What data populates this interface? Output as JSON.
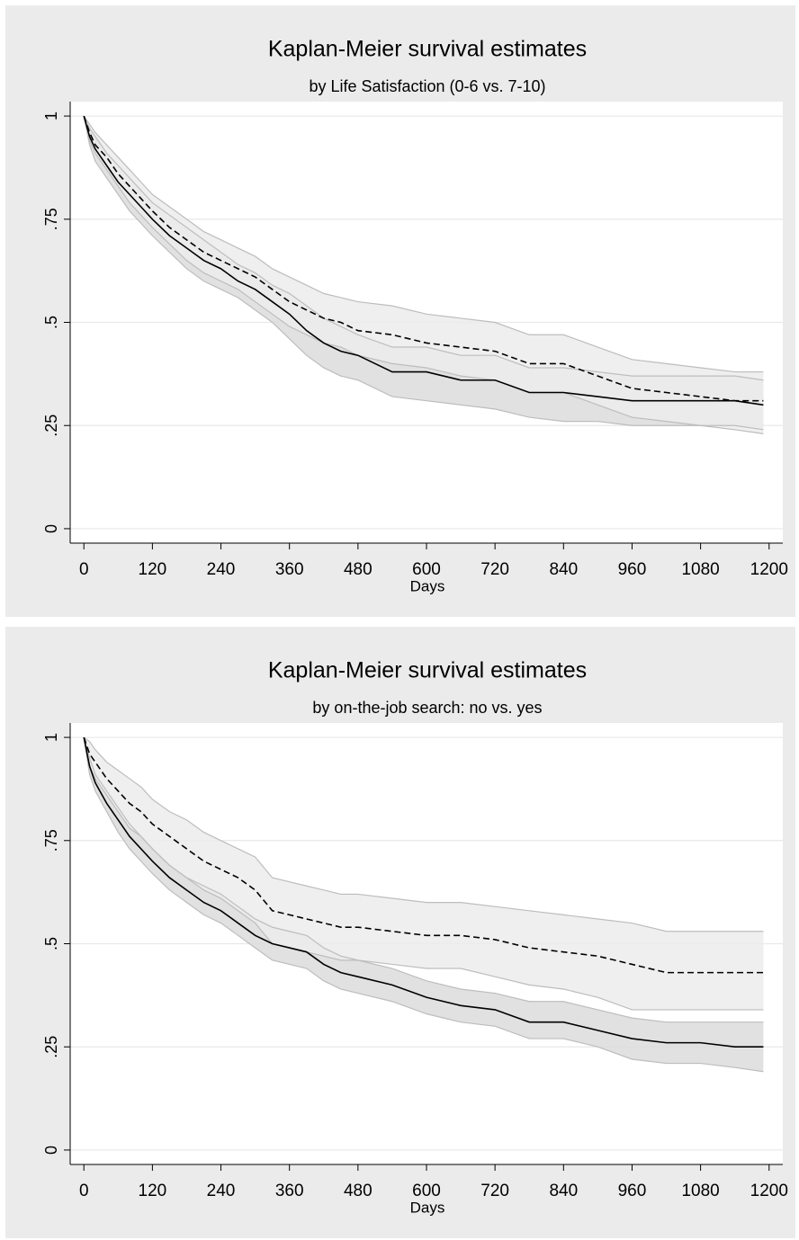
{
  "chart_data": [
    {
      "type": "line",
      "title": "Kaplan-Meier survival estimates",
      "subtitle": "by Life Satisfaction (0-6 vs. 7-10)",
      "xlabel": "Days",
      "x": [
        0,
        10,
        20,
        40,
        60,
        80,
        100,
        120,
        150,
        180,
        210,
        240,
        270,
        300,
        330,
        360,
        390,
        420,
        450,
        480,
        540,
        600,
        660,
        720,
        780,
        840,
        900,
        960,
        1020,
        1080,
        1140,
        1190
      ],
      "series": [
        {
          "color": "#000000",
          "dash": false,
          "band_color": "#dcdcdc",
          "values": [
            1,
            0.95,
            0.92,
            0.88,
            0.84,
            0.81,
            0.78,
            0.75,
            0.71,
            0.68,
            0.65,
            0.63,
            0.6,
            0.58,
            0.55,
            0.52,
            0.48,
            0.45,
            0.43,
            0.42,
            0.38,
            0.38,
            0.36,
            0.36,
            0.33,
            0.33,
            0.32,
            0.31,
            0.31,
            0.31,
            0.31,
            0.3
          ],
          "lower": [
            1,
            0.93,
            0.89,
            0.85,
            0.81,
            0.77,
            0.74,
            0.71,
            0.67,
            0.63,
            0.6,
            0.58,
            0.56,
            0.53,
            0.5,
            0.46,
            0.42,
            0.39,
            0.37,
            0.36,
            0.32,
            0.31,
            0.3,
            0.29,
            0.27,
            0.26,
            0.26,
            0.25,
            0.25,
            0.25,
            0.25,
            0.24
          ],
          "upper": [
            1,
            0.97,
            0.95,
            0.91,
            0.88,
            0.85,
            0.82,
            0.79,
            0.76,
            0.73,
            0.7,
            0.67,
            0.64,
            0.62,
            0.59,
            0.57,
            0.54,
            0.51,
            0.49,
            0.47,
            0.44,
            0.44,
            0.42,
            0.42,
            0.39,
            0.39,
            0.38,
            0.37,
            0.37,
            0.37,
            0.37,
            0.36
          ]
        },
        {
          "color": "#000000",
          "dash": true,
          "band_color": "#ececec",
          "values": [
            1,
            0.96,
            0.93,
            0.9,
            0.86,
            0.83,
            0.8,
            0.77,
            0.73,
            0.7,
            0.67,
            0.65,
            0.63,
            0.61,
            0.58,
            0.55,
            0.53,
            0.51,
            0.5,
            0.48,
            0.47,
            0.45,
            0.44,
            0.43,
            0.4,
            0.4,
            0.37,
            0.34,
            0.33,
            0.32,
            0.31,
            0.31
          ],
          "lower": [
            1,
            0.94,
            0.91,
            0.87,
            0.83,
            0.79,
            0.76,
            0.73,
            0.69,
            0.65,
            0.62,
            0.6,
            0.58,
            0.55,
            0.52,
            0.49,
            0.47,
            0.45,
            0.44,
            0.42,
            0.4,
            0.39,
            0.37,
            0.36,
            0.33,
            0.33,
            0.3,
            0.27,
            0.26,
            0.25,
            0.24,
            0.23
          ],
          "upper": [
            1,
            0.98,
            0.96,
            0.93,
            0.9,
            0.87,
            0.84,
            0.81,
            0.78,
            0.75,
            0.72,
            0.7,
            0.68,
            0.66,
            0.63,
            0.61,
            0.59,
            0.57,
            0.56,
            0.55,
            0.54,
            0.52,
            0.51,
            0.5,
            0.47,
            0.47,
            0.44,
            0.41,
            0.4,
            0.39,
            0.38,
            0.38
          ]
        }
      ],
      "xlim": [
        -24,
        1224
      ],
      "xticks": [
        0,
        120,
        240,
        360,
        480,
        600,
        720,
        840,
        960,
        1080,
        1200
      ],
      "ylim": [
        -0.035,
        1.035
      ],
      "yticks": [
        0,
        {
          "value": 0.25,
          "label": ".25"
        },
        {
          "value": 0.5,
          "label": ".5"
        },
        {
          "value": 0.75,
          "label": ".75"
        },
        1
      ],
      "grid": true
    },
    {
      "type": "line",
      "title": "Kaplan-Meier survival estimates",
      "subtitle": "by on-the-job search: no vs. yes",
      "xlabel": "Days",
      "x": [
        0,
        10,
        20,
        40,
        60,
        80,
        100,
        120,
        150,
        180,
        210,
        240,
        270,
        300,
        330,
        360,
        390,
        420,
        450,
        480,
        540,
        600,
        660,
        720,
        780,
        840,
        900,
        960,
        1020,
        1080,
        1140,
        1190
      ],
      "series": [
        {
          "color": "#000000",
          "dash": false,
          "band_color": "#dcdcdc",
          "values": [
            1,
            0.93,
            0.89,
            0.84,
            0.8,
            0.76,
            0.73,
            0.7,
            0.66,
            0.63,
            0.6,
            0.58,
            0.55,
            0.52,
            0.5,
            0.49,
            0.48,
            0.45,
            0.43,
            0.42,
            0.4,
            0.37,
            0.35,
            0.34,
            0.31,
            0.31,
            0.29,
            0.27,
            0.26,
            0.26,
            0.25,
            0.25
          ],
          "lower": [
            1,
            0.91,
            0.87,
            0.82,
            0.77,
            0.73,
            0.7,
            0.67,
            0.63,
            0.6,
            0.57,
            0.55,
            0.52,
            0.49,
            0.46,
            0.45,
            0.44,
            0.41,
            0.39,
            0.38,
            0.36,
            0.33,
            0.31,
            0.3,
            0.27,
            0.27,
            0.25,
            0.22,
            0.21,
            0.21,
            0.2,
            0.19
          ],
          "upper": [
            1,
            0.95,
            0.91,
            0.87,
            0.83,
            0.79,
            0.76,
            0.73,
            0.69,
            0.66,
            0.64,
            0.62,
            0.59,
            0.56,
            0.54,
            0.53,
            0.52,
            0.49,
            0.47,
            0.46,
            0.44,
            0.41,
            0.39,
            0.38,
            0.36,
            0.36,
            0.34,
            0.32,
            0.31,
            0.31,
            0.31,
            0.31
          ]
        },
        {
          "color": "#000000",
          "dash": true,
          "band_color": "#ececec",
          "values": [
            1,
            0.96,
            0.94,
            0.9,
            0.87,
            0.84,
            0.82,
            0.79,
            0.76,
            0.73,
            0.7,
            0.68,
            0.66,
            0.63,
            0.58,
            0.57,
            0.56,
            0.55,
            0.54,
            0.54,
            0.53,
            0.52,
            0.52,
            0.51,
            0.49,
            0.48,
            0.47,
            0.45,
            0.43,
            0.43,
            0.43,
            0.43
          ],
          "lower": [
            1,
            0.93,
            0.9,
            0.86,
            0.82,
            0.78,
            0.76,
            0.73,
            0.69,
            0.66,
            0.63,
            0.61,
            0.58,
            0.55,
            0.5,
            0.49,
            0.48,
            0.47,
            0.46,
            0.46,
            0.45,
            0.44,
            0.44,
            0.42,
            0.4,
            0.39,
            0.37,
            0.34,
            0.34,
            0.34,
            0.34,
            0.34
          ],
          "upper": [
            1,
            0.99,
            0.97,
            0.94,
            0.92,
            0.9,
            0.88,
            0.85,
            0.82,
            0.8,
            0.77,
            0.75,
            0.73,
            0.71,
            0.66,
            0.65,
            0.64,
            0.63,
            0.62,
            0.62,
            0.61,
            0.6,
            0.6,
            0.59,
            0.58,
            0.57,
            0.56,
            0.55,
            0.53,
            0.53,
            0.53,
            0.53
          ]
        }
      ],
      "xlim": [
        -24,
        1224
      ],
      "xticks": [
        0,
        120,
        240,
        360,
        480,
        600,
        720,
        840,
        960,
        1080,
        1200
      ],
      "ylim": [
        -0.035,
        1.035
      ],
      "yticks": [
        0,
        {
          "value": 0.25,
          "label": ".25"
        },
        {
          "value": 0.5,
          "label": ".5"
        },
        {
          "value": 0.75,
          "label": ".75"
        },
        1
      ],
      "grid": true
    }
  ]
}
